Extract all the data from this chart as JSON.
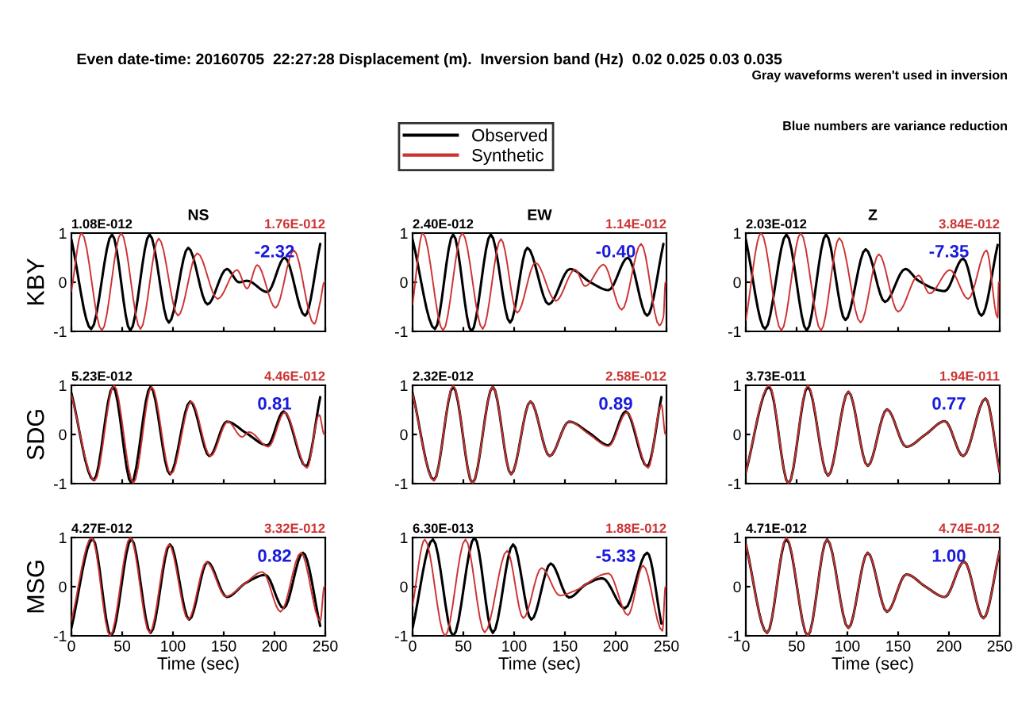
{
  "chart_data": [
    {
      "type": "line",
      "title": "NS",
      "ylabel": "KBY",
      "xlim": [
        0,
        250
      ],
      "ylim": [
        -1,
        1
      ],
      "xticks": [
        0,
        50,
        100,
        150,
        200,
        250
      ],
      "yticks": [
        -1,
        0,
        1
      ],
      "tick_labels": "y",
      "annotations": [
        "1.08E-012",
        "1.76E-012",
        "-2.32",
        "Even date-time: 20160705  22:27:28 Displacement (m).  Inversion band (Hz)  0.02 0.025 0.03 0.035"
      ],
      "series": [
        {
          "color": "#000000",
          "x": [
            0,
            19.5,
            40,
            58,
            77,
            96,
            115,
            134,
            153,
            165,
            173,
            193,
            210,
            230,
            245
          ],
          "values": [
            0.87,
            -0.95,
            0.97,
            -0.98,
            0.97,
            -0.82,
            0.7,
            -0.45,
            0.27,
            0.0,
            0.03,
            -0.2,
            0.5,
            -0.68,
            0.78
          ]
        },
        {
          "color": "#cc3333",
          "x": [
            0,
            10,
            30,
            49,
            68,
            86,
            105,
            124,
            144,
            163,
            173,
            183,
            201,
            219,
            239,
            245,
            249,
            250
          ],
          "values": [
            -0.18,
            1.0,
            -0.98,
            1.0,
            -0.95,
            0.89,
            -0.68,
            0.59,
            -0.34,
            0.25,
            -0.13,
            0.35,
            -0.52,
            0.65,
            -0.85,
            -0.4,
            0,
            0
          ]
        }
      ]
    },
    {
      "type": "line",
      "title": "EW",
      "xlim": [
        0,
        250
      ],
      "ylim": [
        -1,
        1
      ],
      "xticks": [
        0,
        50,
        100,
        150,
        200,
        250
      ],
      "yticks": [
        -1,
        0,
        1
      ],
      "tick_labels": "y",
      "legend": "top",
      "annotations": [
        "2.40E-012",
        "1.14E-012",
        "-0.40"
      ],
      "series": [
        {
          "name": "Observed",
          "color": "#000000",
          "x": [
            0,
            22,
            40,
            58,
            77,
            96,
            113,
            134,
            155,
            175,
            193,
            212,
            231,
            247
          ],
          "values": [
            0.87,
            -0.95,
            0.97,
            -1.0,
            0.97,
            -0.82,
            0.7,
            -0.45,
            0.27,
            0.0,
            -0.16,
            0.5,
            -0.68,
            0.78
          ]
        },
        {
          "name": "Synthetic",
          "color": "#cc3333",
          "x": [
            0,
            10,
            30,
            49,
            69,
            87,
            103,
            121,
            141,
            160,
            170,
            188,
            206,
            225,
            243,
            247,
            249,
            250
          ],
          "values": [
            -0.45,
            1.0,
            -0.98,
            1.0,
            -0.95,
            0.88,
            -0.62,
            0.4,
            -0.38,
            0.26,
            -0.08,
            0.36,
            -0.56,
            0.78,
            -0.88,
            -0.7,
            0,
            0
          ]
        }
      ]
    },
    {
      "type": "line",
      "title": "Z",
      "xlim": [
        0,
        250
      ],
      "ylim": [
        -1,
        1
      ],
      "xticks": [
        0,
        50,
        100,
        150,
        200,
        250
      ],
      "yticks": [
        -1,
        0,
        1
      ],
      "tick_labels": "y",
      "annotations": [
        "2.03E-012",
        "3.84E-012",
        "-7.35",
        "Gray waveforms weren't used in inversion",
        "Blue numbers are variance reduction"
      ],
      "series": [
        {
          "color": "#000000",
          "x": [
            0,
            19,
            40,
            60,
            79,
            98,
            118,
            137,
            157,
            170,
            196,
            214,
            232,
            248
          ],
          "values": [
            0.87,
            -0.95,
            0.97,
            -0.98,
            0.97,
            -0.77,
            0.67,
            -0.4,
            0.27,
            0.03,
            -0.18,
            0.48,
            -0.68,
            0.76
          ]
        },
        {
          "color": "#cc3333",
          "x": [
            0,
            15,
            35,
            54,
            74,
            92,
            113,
            131,
            150,
            170,
            181,
            201,
            219,
            237,
            248,
            249,
            250
          ],
          "values": [
            -0.77,
            1.0,
            -0.98,
            1.0,
            -0.98,
            0.9,
            -0.82,
            0.57,
            -0.6,
            0.14,
            -0.23,
            0.25,
            -0.34,
            0.65,
            -0.72,
            0,
            0
          ]
        }
      ]
    },
    {
      "type": "line",
      "ylabel": "SDG",
      "xlim": [
        0,
        250
      ],
      "ylim": [
        -1,
        1
      ],
      "xticks": [
        0,
        50,
        100,
        150,
        200,
        250
      ],
      "yticks": [
        -1,
        0,
        1
      ],
      "tick_labels": "y",
      "annotations": [
        "5.23E-012",
        "4.46E-012",
        "0.81"
      ],
      "series": [
        {
          "color": "#000000",
          "x": [
            0,
            22,
            41,
            59,
            78,
            97,
            117,
            136,
            153,
            172,
            193,
            209,
            231,
            245
          ],
          "values": [
            0.84,
            -0.93,
            0.97,
            -0.99,
            0.97,
            -0.81,
            0.67,
            -0.44,
            0.26,
            0.03,
            -0.22,
            0.47,
            -0.65,
            0.76
          ]
        },
        {
          "color": "#cc3333",
          "x": [
            0,
            23,
            42,
            61,
            79,
            98,
            118,
            137,
            154,
            168,
            175,
            194,
            210,
            232,
            244,
            249,
            250
          ],
          "values": [
            0.8,
            -0.94,
            1.0,
            -0.99,
            0.97,
            -0.81,
            0.67,
            -0.44,
            0.26,
            -0.05,
            0.05,
            -0.25,
            0.45,
            -0.68,
            0.4,
            0,
            0
          ]
        }
      ]
    },
    {
      "type": "line",
      "xlim": [
        0,
        250
      ],
      "ylim": [
        -1,
        1
      ],
      "xticks": [
        0,
        50,
        100,
        150,
        200,
        250
      ],
      "yticks": [
        -1,
        0,
        1
      ],
      "tick_labels": "y",
      "annotations": [
        "2.32E-012",
        "2.58E-012",
        "0.89"
      ],
      "series": [
        {
          "color": "#000000",
          "x": [
            0,
            21,
            40,
            59,
            79,
            97,
            116,
            135,
            154,
            174,
            193,
            210,
            231,
            245
          ],
          "values": [
            0.84,
            -0.93,
            0.97,
            -0.99,
            0.97,
            -0.81,
            0.67,
            -0.44,
            0.26,
            0.03,
            -0.22,
            0.47,
            -0.65,
            0.76
          ]
        },
        {
          "color": "#cc3333",
          "x": [
            0,
            21,
            40,
            59,
            79,
            97,
            116,
            135,
            154,
            174,
            193,
            211,
            232,
            245,
            249,
            250
          ],
          "values": [
            0.82,
            -0.94,
            1.0,
            -0.99,
            0.97,
            -0.81,
            0.67,
            -0.44,
            0.26,
            0.0,
            -0.24,
            0.45,
            -0.68,
            0.6,
            0,
            0
          ]
        }
      ]
    },
    {
      "type": "line",
      "xlim": [
        0,
        250
      ],
      "ylim": [
        -1,
        1
      ],
      "xticks": [
        0,
        50,
        100,
        150,
        200,
        250
      ],
      "yticks": [
        -1,
        0,
        1
      ],
      "tick_labels": "y",
      "annotations": [
        "3.73E-011",
        "1.94E-011",
        "0.77"
      ],
      "series": [
        {
          "color": "#000000",
          "x": [
            0,
            23,
            42,
            61,
            81,
            101,
            120,
            139,
            158,
            177,
            196,
            214,
            236,
            250
          ],
          "values": [
            -0.77,
            0.97,
            -1.0,
            0.97,
            -0.84,
            0.87,
            -0.64,
            0.51,
            -0.25,
            0.0,
            0.27,
            -0.44,
            0.73,
            -0.77
          ]
        },
        {
          "color": "#cc3333",
          "x": [
            0,
            23,
            42,
            61,
            81,
            101,
            120,
            139,
            158,
            177,
            196,
            214,
            236,
            250
          ],
          "values": [
            -0.77,
            1.0,
            -1.0,
            1.0,
            -0.84,
            0.87,
            -0.64,
            0.51,
            -0.25,
            0.0,
            0.27,
            -0.44,
            0.73,
            -0.77
          ]
        }
      ]
    },
    {
      "type": "line",
      "ylabel": "MSG",
      "xlabel": "Time (sec)",
      "xlim": [
        0,
        250
      ],
      "ylim": [
        -1,
        1
      ],
      "xticks": [
        0,
        50,
        100,
        150,
        200,
        250
      ],
      "yticks": [
        -1,
        0,
        1
      ],
      "annotations": [
        "4.27E-012",
        "3.32E-012",
        "0.82"
      ],
      "series": [
        {
          "color": "#000000",
          "x": [
            0,
            21,
            39,
            59,
            78,
            97,
            116,
            134,
            153,
            172,
            191,
            209,
            228,
            245
          ],
          "values": [
            -0.84,
            0.97,
            -1.0,
            0.97,
            -0.94,
            0.86,
            -0.67,
            0.5,
            -0.21,
            0.08,
            0.24,
            -0.44,
            0.69,
            -0.8
          ]
        },
        {
          "color": "#cc3333",
          "x": [
            0,
            20,
            38,
            58,
            77,
            96,
            115,
            133,
            152,
            170,
            188,
            206,
            226,
            245,
            249,
            250
          ],
          "values": [
            -0.7,
            1.0,
            -1.0,
            1.0,
            -0.94,
            0.86,
            -0.67,
            0.5,
            -0.2,
            0.05,
            0.3,
            -0.51,
            0.69,
            -0.7,
            0,
            0
          ]
        }
      ]
    },
    {
      "type": "line",
      "xlabel": "Time (sec)",
      "xlim": [
        0,
        250
      ],
      "ylim": [
        -1,
        1
      ],
      "xticks": [
        0,
        50,
        100,
        150,
        200,
        250
      ],
      "yticks": [
        -1,
        0,
        1
      ],
      "annotations": [
        "6.30E-013",
        "1.88E-012",
        "-5.33"
      ],
      "series": [
        {
          "color": "#000000",
          "x": [
            0,
            20,
            40,
            61,
            79,
            99,
            117,
            136,
            154,
            171,
            187,
            209,
            231,
            245
          ],
          "values": [
            -0.84,
            0.96,
            -1.0,
            1.0,
            -0.94,
            0.86,
            -0.67,
            0.47,
            -0.22,
            0.05,
            0.17,
            -0.44,
            0.69,
            -0.75
          ]
        },
        {
          "color": "#cc3333",
          "x": [
            0,
            12,
            32,
            52,
            71,
            93,
            109,
            127,
            145,
            159,
            193,
            212,
            227,
            246,
            249,
            250
          ],
          "values": [
            -0.38,
            0.96,
            -1.0,
            0.96,
            -0.93,
            0.73,
            -0.64,
            0.38,
            -0.18,
            -0.09,
            0.27,
            -0.58,
            0.43,
            -0.9,
            0,
            0
          ]
        }
      ]
    },
    {
      "type": "line",
      "xlabel": "Time (sec)",
      "xlim": [
        0,
        250
      ],
      "ylim": [
        -1,
        1
      ],
      "xticks": [
        0,
        50,
        100,
        150,
        200,
        250
      ],
      "yticks": [
        -1,
        0,
        1
      ],
      "annotations": [
        "4.71E-012",
        "4.74E-012",
        "1.00"
      ],
      "series": [
        {
          "color": "#000000",
          "x": [
            0,
            21,
            40,
            61,
            80,
            101,
            120,
            139,
            158,
            177,
            196,
            215,
            234,
            250
          ],
          "values": [
            0.86,
            -0.94,
            0.97,
            -1.0,
            0.96,
            -0.84,
            0.69,
            -0.51,
            0.25,
            0.0,
            -0.21,
            0.51,
            -0.64,
            0.73
          ]
        },
        {
          "color": "#cc3333",
          "x": [
            0,
            21,
            40,
            61,
            80,
            101,
            120,
            139,
            158,
            177,
            196,
            215,
            234,
            250
          ],
          "values": [
            0.86,
            -0.94,
            1.0,
            -1.0,
            0.96,
            -0.84,
            0.69,
            -0.51,
            0.25,
            0.0,
            -0.21,
            0.51,
            -0.64,
            0.73
          ]
        }
      ]
    }
  ]
}
